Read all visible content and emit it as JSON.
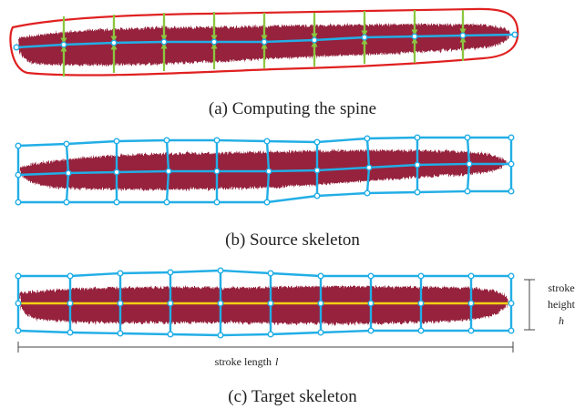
{
  "colors": {
    "stroke_paint": "#96203c",
    "stroke_paint_dark": "#7a1730",
    "outline": "#e02020",
    "skeleton": "#22aee6",
    "normal_arrow": "#8cc63f",
    "target_spine": "#f2d016"
  },
  "panels": [
    {
      "caption": "(a) Computing the spine"
    },
    {
      "caption": "(b) Source skeleton"
    },
    {
      "caption": "(c) Target skeleton"
    }
  ],
  "annotations": {
    "length_label": "stroke length",
    "length_symbol": "l",
    "height_line1": "stroke",
    "height_line2": "height",
    "height_symbol": "h"
  }
}
